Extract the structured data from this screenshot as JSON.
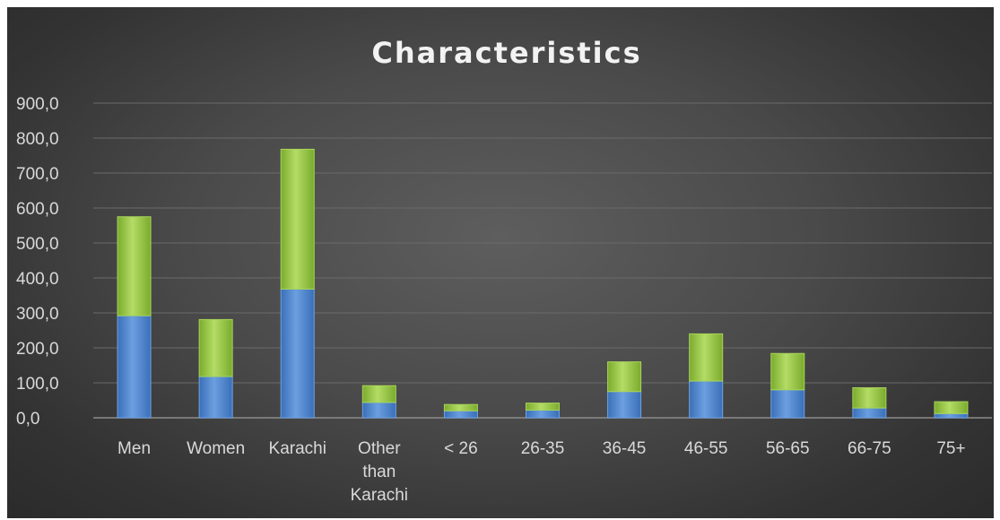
{
  "chart_data": {
    "type": "bar",
    "stacked": true,
    "title": "Characteristics",
    "xlabel": "",
    "ylabel": "",
    "categories": [
      "Men",
      "Women",
      "Karachi",
      "Other than Karachi",
      "< 26",
      "26-35",
      "36-45",
      "46-55",
      "56-65",
      "66-75",
      "75+"
    ],
    "category_lines": [
      [
        "Men"
      ],
      [
        "Women"
      ],
      [
        "Karachi"
      ],
      [
        "Other",
        "than",
        "Karachi"
      ],
      [
        "< 26"
      ],
      [
        "26-35"
      ],
      [
        "36-45"
      ],
      [
        "46-55"
      ],
      [
        "56-65"
      ],
      [
        "66-75"
      ],
      [
        "75+"
      ]
    ],
    "series": [
      {
        "values": [
          292,
          118,
          368,
          44,
          20,
          22,
          75,
          105,
          80,
          28,
          12
        ],
        "color": "#4f86d0"
      },
      {
        "values": [
          283,
          163,
          400,
          48,
          18,
          20,
          85,
          135,
          104,
          58,
          34
        ],
        "color": "#8fbf3a"
      }
    ],
    "ylim": [
      0,
      900
    ],
    "yticks": [
      0,
      100,
      200,
      300,
      400,
      500,
      600,
      700,
      800,
      900
    ],
    "ytick_labels": [
      "0,0",
      "100,0",
      "200,0",
      "300,0",
      "400,0",
      "500,0",
      "600,0",
      "700,0",
      "800,0",
      "900,0"
    ],
    "grid": true,
    "legend": "none"
  }
}
